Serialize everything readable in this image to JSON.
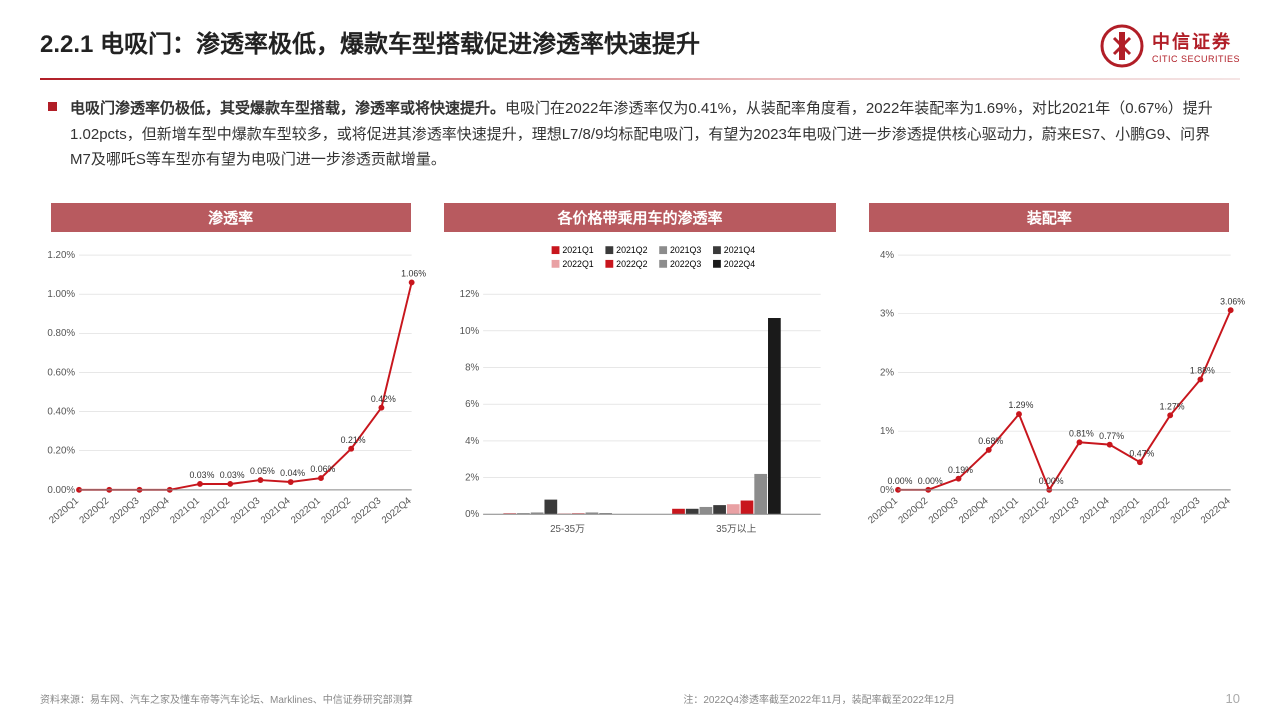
{
  "header": {
    "title": "2.2.1 电吸门：渗透率极低，爆款车型搭载促进渗透率快速提升",
    "logo_cn": "中信证券",
    "logo_en": "CITIC SECURITIES"
  },
  "body": {
    "bold": "电吸门渗透率仍极低，其受爆款车型搭载，渗透率或将快速提升。",
    "rest": "电吸门在2022年渗透率仅为0.41%，从装配率角度看，2022年装配率为1.69%，对比2021年（0.67%）提升1.02pcts，但新增车型中爆款车型较多，或将促进其渗透率快速提升，理想L7/8/9均标配电吸门，有望为2023年电吸门进一步渗透提供核心驱动力，蔚来ES7、小鹏G9、问界M7及哪吒S等车型亦有望为电吸门进一步渗透贡献增量。"
  },
  "chart1": {
    "title": "渗透率",
    "type": "line",
    "x": [
      "2020Q1",
      "2020Q2",
      "2020Q3",
      "2020Q4",
      "2021Q1",
      "2021Q2",
      "2021Q3",
      "2021Q4",
      "2022Q1",
      "2022Q2",
      "2022Q3",
      "2022Q4"
    ],
    "y": [
      0.0,
      0.0,
      0.0,
      0.0,
      0.03,
      0.03,
      0.05,
      0.04,
      0.06,
      0.21,
      0.42,
      1.06
    ],
    "labelPoints": {
      "4": "0.03%",
      "5": "0.03%",
      "6": "0.05%",
      "7": "0.04%",
      "8": "0.06%",
      "9": "0.21%",
      "10": "0.42%",
      "11": "1.06%"
    },
    "ylim": [
      0,
      1.2
    ],
    "ytick": 0.2,
    "yFmt": "pct2",
    "lineColor": "#c8161d",
    "markerColor": "#c8161d",
    "gridColor": "#d9d9d9"
  },
  "chart2": {
    "title": "各价格带乘用车的渗透率",
    "type": "grouped-bar",
    "groups": [
      "25-35万",
      "35万以上"
    ],
    "seriesNames": [
      "2021Q1",
      "2021Q2",
      "2021Q3",
      "2021Q4",
      "2022Q1",
      "2022Q2",
      "2022Q3",
      "2022Q4"
    ],
    "seriesColors": [
      "#c8161d",
      "#3a3a3a",
      "#8c8c8c",
      "#3a3a3a",
      "#e9a1a4",
      "#c8161d",
      "#8c8c8c",
      "#1a1a1a"
    ],
    "values": [
      [
        0.05,
        0.05,
        0.1,
        0.8,
        0.05,
        0.05,
        0.1,
        0.05
      ],
      [
        0.3,
        0.3,
        0.4,
        0.5,
        0.55,
        0.75,
        2.2,
        10.7
      ]
    ],
    "ylim": [
      0,
      12
    ],
    "ytick": 2,
    "yFmt": "pct0",
    "gridColor": "#d9d9d9"
  },
  "chart3": {
    "title": "装配率",
    "type": "line",
    "x": [
      "2020Q1",
      "2020Q2",
      "2020Q3",
      "2020Q4",
      "2021Q1",
      "2021Q2",
      "2021Q3",
      "2021Q4",
      "2022Q1",
      "2022Q2",
      "2022Q3",
      "2022Q4"
    ],
    "y": [
      0.0,
      0.0,
      0.19,
      0.68,
      1.29,
      0.0,
      0.81,
      0.77,
      0.47,
      1.27,
      1.88,
      3.06
    ],
    "labelPoints": {
      "0": "0.00%",
      "1": "0.00%",
      "2": "0.19%",
      "3": "0.68%",
      "4": "1.29%",
      "5": "0.00%",
      "6": "0.81%",
      "7": "0.77%",
      "8": "0.47%",
      "9": "1.27%",
      "10": "1.88%",
      "11": "3.06%"
    },
    "ylim": [
      0,
      4
    ],
    "ytick": 1,
    "yFmt": "pct0",
    "lineColor": "#c8161d",
    "markerColor": "#c8161d",
    "gridColor": "#d9d9d9"
  },
  "footer": {
    "source": "资料来源：易车网、汽车之家及懂车帝等汽车论坛、Marklines、中信证券研究部测算",
    "note": "注：2022Q4渗透率截至2022年11月，装配率截至2022年12月",
    "page": "10"
  }
}
